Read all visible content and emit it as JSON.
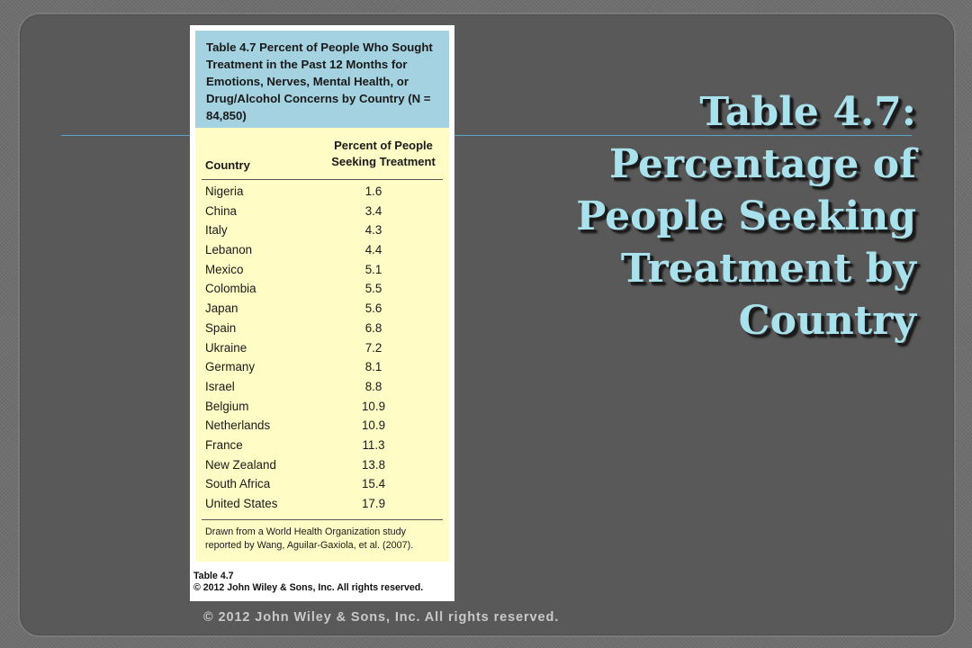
{
  "slide": {
    "title_lines": [
      "Table 4.7:",
      "Percentage of",
      "People Seeking",
      "Treatment by",
      "Country"
    ],
    "footer": "© 2012 John Wiley & Sons, Inc. All rights reserved.",
    "title_color": "#a9e1ec",
    "rule_color": "#57a6c4"
  },
  "table": {
    "caption": "Table 4.7 Percent of People Who Sought Treatment in the Past 12 Months for Emotions, Nerves, Mental Health, or Drug/Alcohol Concerns by Country (N = 84,850)",
    "columns": {
      "country": "Country",
      "percent_line1": "Percent of People",
      "percent_line2": "Seeking Treatment"
    },
    "rows": [
      {
        "country": "Nigeria",
        "value": "1.6"
      },
      {
        "country": "China",
        "value": "3.4"
      },
      {
        "country": "Italy",
        "value": "4.3"
      },
      {
        "country": "Lebanon",
        "value": "4.4"
      },
      {
        "country": "Mexico",
        "value": "5.1"
      },
      {
        "country": "Colombia",
        "value": "5.5"
      },
      {
        "country": "Japan",
        "value": "5.6"
      },
      {
        "country": "Spain",
        "value": "6.8"
      },
      {
        "country": "Ukraine",
        "value": "7.2"
      },
      {
        "country": "Germany",
        "value": "8.1"
      },
      {
        "country": "Israel",
        "value": "8.8"
      },
      {
        "country": "Belgium",
        "value": "10.9"
      },
      {
        "country": "Netherlands",
        "value": "10.9"
      },
      {
        "country": "France",
        "value": "11.3"
      },
      {
        "country": "New Zealand",
        "value": "13.8"
      },
      {
        "country": "South Africa",
        "value": "15.4"
      },
      {
        "country": "United States",
        "value": "17.9"
      }
    ],
    "source_note": "Drawn from a World Health Organization study reported by Wang, Aguilar-Gaxiola, et al. (2007).",
    "figure_label": "Table 4.7",
    "figure_copyright": "© 2012 John Wiley & Sons, Inc. All rights reserved.",
    "caption_bg": "#a4d2e1",
    "body_bg": "#fffcc6"
  }
}
